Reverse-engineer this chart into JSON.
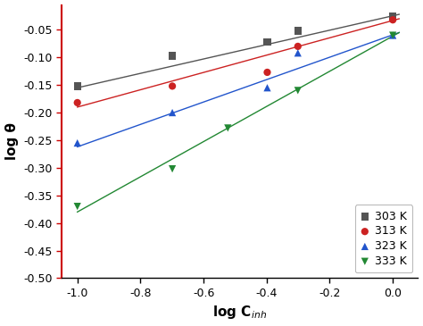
{
  "title": "",
  "xlabel": "log C$_{inh}$",
  "ylabel": "log θ",
  "xlim": [
    -1.05,
    0.08
  ],
  "ylim": [
    -0.5,
    -0.005
  ],
  "yticks": [
    -0.05,
    -0.1,
    -0.15,
    -0.2,
    -0.25,
    -0.3,
    -0.35,
    -0.4,
    -0.45,
    -0.5
  ],
  "ytick_labels": [
    "-0.05",
    "-0.10",
    "-0.15",
    "-0.20",
    "-0.25",
    "-0.30",
    "-0.35",
    "-0.40",
    "-0.45",
    "-0.50"
  ],
  "xticks": [
    -1.0,
    -0.8,
    -0.6,
    -0.4,
    -0.2,
    0.0
  ],
  "xtick_labels": [
    "-1.0",
    "-0.8",
    "-0.6",
    "-0.4",
    "-0.2",
    "0.0"
  ],
  "series": [
    {
      "label": "303 K",
      "color": "#555555",
      "marker": "s",
      "x": [
        -1.0,
        -0.699,
        -0.398,
        -0.301,
        0.0
      ],
      "y": [
        -0.152,
        -0.097,
        -0.072,
        -0.052,
        -0.026
      ],
      "line_x": [
        -1.0,
        0.02
      ],
      "line_y": [
        -0.155,
        -0.022
      ]
    },
    {
      "label": "313 K",
      "color": "#cc2222",
      "marker": "o",
      "x": [
        -1.0,
        -0.699,
        -0.398,
        -0.301,
        0.0
      ],
      "y": [
        -0.182,
        -0.152,
        -0.127,
        -0.08,
        -0.032
      ],
      "line_x": [
        -1.0,
        0.02
      ],
      "line_y": [
        -0.19,
        -0.03
      ]
    },
    {
      "label": "323 K",
      "color": "#2255cc",
      "marker": "^",
      "x": [
        -1.0,
        -0.699,
        -0.398,
        -0.301,
        0.0
      ],
      "y": [
        -0.255,
        -0.2,
        -0.155,
        -0.092,
        -0.06
      ],
      "line_x": [
        -1.0,
        0.02
      ],
      "line_y": [
        -0.262,
        -0.055
      ]
    },
    {
      "label": "333 K",
      "color": "#228833",
      "marker": "v",
      "x": [
        -1.0,
        -0.699,
        -0.523,
        -0.301,
        0.0
      ],
      "y": [
        -0.37,
        -0.302,
        -0.228,
        -0.16,
        -0.06
      ],
      "line_x": [
        -1.0,
        0.02
      ],
      "line_y": [
        -0.38,
        -0.055
      ]
    }
  ],
  "legend_loc": "lower right",
  "background_color": "#ffffff",
  "left_spine_color": "#cc0000",
  "bottom_spine_color": "#000000",
  "tick_label_color": "#000000",
  "ytick_color": "#cc0000",
  "xtick_color": "#000000"
}
